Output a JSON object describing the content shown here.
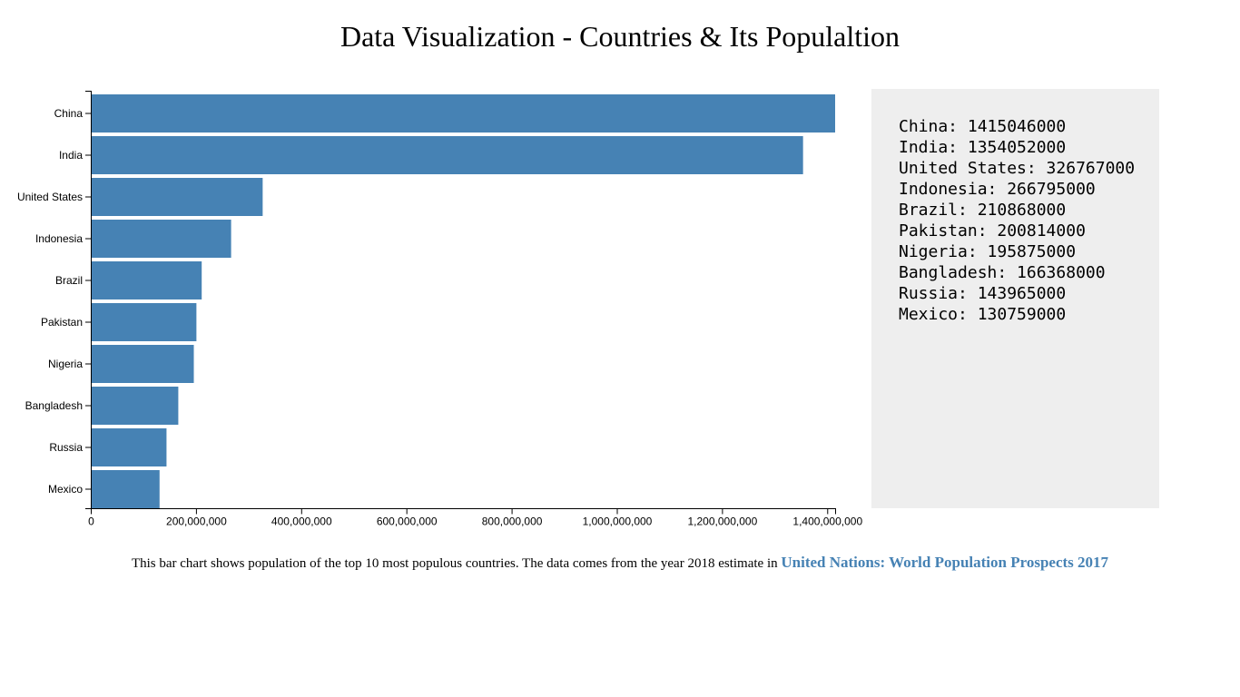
{
  "page": {
    "title": "Data Visualization - Countries & Its Populaltion",
    "caption_text": "This bar chart shows population of the top 10 most populous countries. The data comes from the year 2018 estimate in ",
    "source_link": "United Nations: World Population Prospects 2017"
  },
  "colors": {
    "bar": "#4682b4",
    "panel_bg": "#eeeeee",
    "link": "#4682b4"
  },
  "info_panel": {
    "lines": [
      "China: 1415046000",
      "India: 1354052000",
      "United States: 326767000",
      "Indonesia: 266795000",
      "Brazil: 210868000",
      "Pakistan: 200814000",
      "Nigeria: 195875000",
      "Bangladesh: 166368000",
      "Russia: 143965000",
      "Mexico: 130759000"
    ]
  },
  "chart_data": {
    "type": "bar",
    "orientation": "horizontal",
    "categories": [
      "China",
      "India",
      "United States",
      "Indonesia",
      "Brazil",
      "Pakistan",
      "Nigeria",
      "Bangladesh",
      "Russia",
      "Mexico"
    ],
    "values": [
      1415046000,
      1354052000,
      326767000,
      266795000,
      210868000,
      200814000,
      195875000,
      166368000,
      143965000,
      130759000
    ],
    "xlim": [
      0,
      1415046000
    ],
    "xticks": [
      0,
      200000000,
      400000000,
      600000000,
      800000000,
      1000000000,
      1200000000,
      1400000000
    ],
    "xtick_labels": [
      "0",
      "200,000,000",
      "400,000,000",
      "600,000,000",
      "800,000,000",
      "1,000,000,000",
      "1,200,000,000",
      "1,400,000,000"
    ],
    "title": "",
    "xlabel": "",
    "ylabel": "",
    "grid": false,
    "legend": false
  }
}
